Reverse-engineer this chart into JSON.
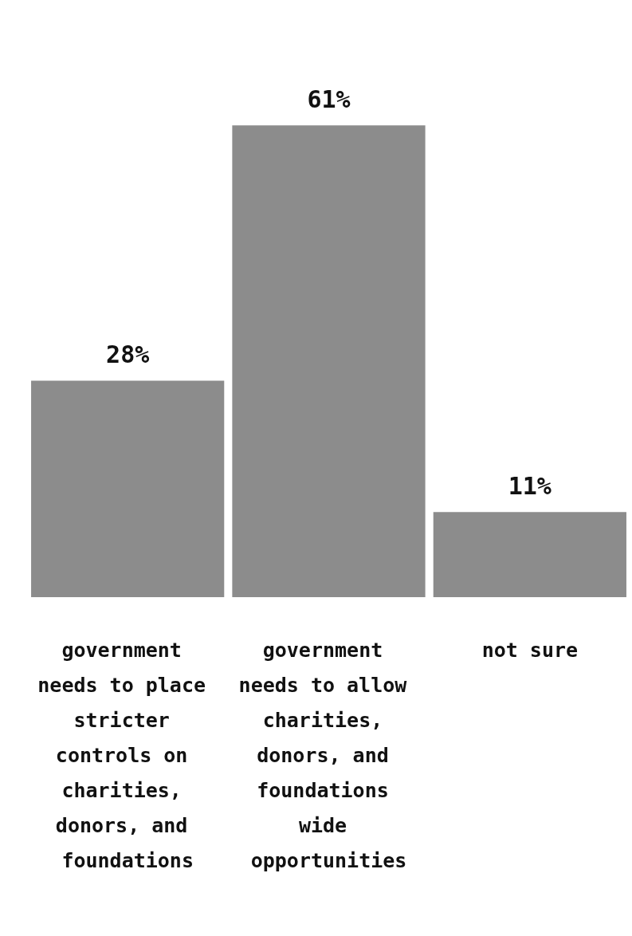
{
  "chart_data": {
    "type": "bar",
    "categories": [
      "government needs to place stricter controls on charities, donors, and foundations",
      "government needs to allow charities, donors, and foundations wide opportunities",
      "not sure"
    ],
    "values": [
      28,
      61,
      11
    ],
    "color": "#8c8c8c",
    "value_labels": [
      "28%",
      "61%",
      "11%"
    ],
    "grid": false
  }
}
